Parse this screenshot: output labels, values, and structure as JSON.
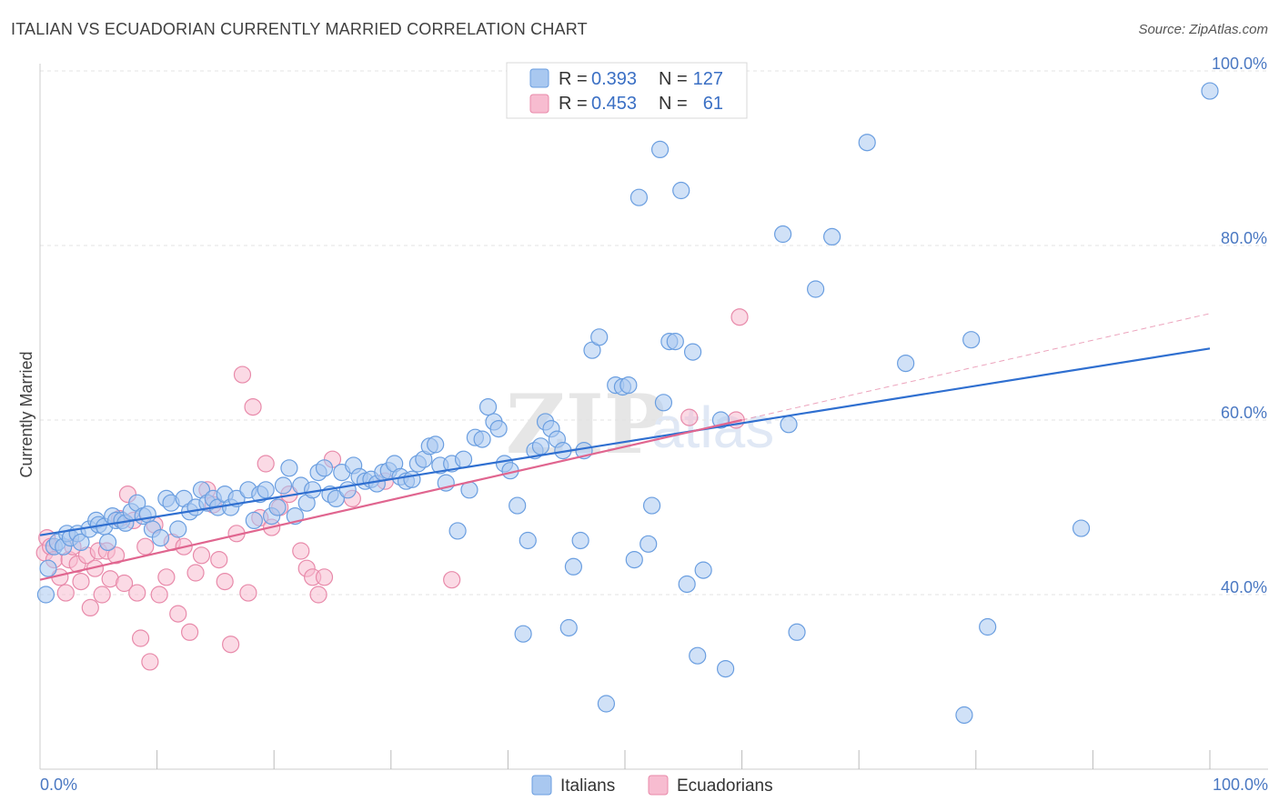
{
  "title": "ITALIAN VS ECUADORIAN CURRENTLY MARRIED CORRELATION CHART",
  "source": "Source: ZipAtlas.com",
  "watermark": {
    "zip": "ZIP",
    "atlas": "atlas"
  },
  "colors": {
    "italians_fill": "#a9c8f0",
    "italians_stroke": "#6a9ee0",
    "italians_line": "#2f6fd0",
    "ecuadorians_fill": "#f7bcd0",
    "ecuadorians_stroke": "#e88aaa",
    "ecuadorians_line": "#e0658f",
    "grid": "#e3e3e3",
    "tick_label": "#4a78c2"
  },
  "legend": {
    "r_label": "R =",
    "n_label": "N =",
    "italians": {
      "r": "0.393",
      "n": "127"
    },
    "ecuadorians": {
      "r": "0.453",
      "n": "61"
    }
  },
  "bottom_legend": [
    "Italians",
    "Ecuadorians"
  ],
  "chart_data": {
    "type": "scatter",
    "title": "ITALIAN VS ECUADORIAN CURRENTLY MARRIED CORRELATION CHART",
    "xlabel": "",
    "ylabel": "Currently Married",
    "xlim": [
      0,
      100
    ],
    "ylim": [
      20,
      100
    ],
    "x_tick_labels": [
      "0.0%",
      "100.0%"
    ],
    "y_tick_labels": [
      "40.0%",
      "60.0%",
      "80.0%",
      "100.0%"
    ],
    "y_ticks": [
      40,
      60,
      80,
      100
    ],
    "grid": "horizontal dashed",
    "legend_position": "top-center",
    "series": [
      {
        "name": "Italians",
        "r": 0.393,
        "n": 127,
        "trend": {
          "x": [
            0,
            100
          ],
          "y": [
            46.8,
            68.2
          ]
        },
        "points": [
          [
            0.5,
            40.0
          ],
          [
            0.7,
            43.0
          ],
          [
            1.2,
            45.5
          ],
          [
            1.5,
            46.0
          ],
          [
            2.0,
            45.5
          ],
          [
            2.3,
            47.0
          ],
          [
            2.6,
            46.5
          ],
          [
            3.2,
            47.0
          ],
          [
            3.5,
            46.0
          ],
          [
            4.2,
            47.5
          ],
          [
            4.8,
            48.5
          ],
          [
            5.0,
            48.0
          ],
          [
            5.5,
            47.8
          ],
          [
            5.8,
            46.0
          ],
          [
            6.2,
            49.0
          ],
          [
            6.5,
            48.5
          ],
          [
            7.0,
            48.5
          ],
          [
            7.3,
            48.2
          ],
          [
            7.8,
            49.5
          ],
          [
            8.3,
            50.5
          ],
          [
            8.8,
            49.0
          ],
          [
            9.2,
            49.2
          ],
          [
            9.6,
            47.5
          ],
          [
            10.3,
            46.5
          ],
          [
            10.8,
            51.0
          ],
          [
            11.2,
            50.5
          ],
          [
            11.8,
            47.5
          ],
          [
            12.3,
            51.0
          ],
          [
            12.8,
            49.5
          ],
          [
            13.3,
            50.0
          ],
          [
            13.8,
            52.0
          ],
          [
            14.3,
            50.5
          ],
          [
            14.8,
            51.0
          ],
          [
            15.2,
            50.0
          ],
          [
            15.8,
            51.5
          ],
          [
            16.3,
            50.0
          ],
          [
            16.8,
            51.0
          ],
          [
            17.8,
            52.0
          ],
          [
            18.3,
            48.5
          ],
          [
            18.8,
            51.5
          ],
          [
            19.3,
            52.0
          ],
          [
            19.8,
            49.0
          ],
          [
            20.3,
            50.0
          ],
          [
            20.8,
            52.5
          ],
          [
            21.3,
            54.5
          ],
          [
            21.8,
            49.0
          ],
          [
            22.3,
            52.5
          ],
          [
            22.8,
            50.5
          ],
          [
            23.3,
            52.0
          ],
          [
            23.8,
            54.0
          ],
          [
            24.3,
            54.5
          ],
          [
            24.8,
            51.5
          ],
          [
            25.3,
            51.0
          ],
          [
            25.8,
            54.0
          ],
          [
            26.3,
            52.0
          ],
          [
            26.8,
            54.8
          ],
          [
            27.3,
            53.5
          ],
          [
            27.8,
            53.0
          ],
          [
            28.3,
            53.2
          ],
          [
            28.8,
            52.7
          ],
          [
            29.3,
            54.0
          ],
          [
            29.8,
            54.2
          ],
          [
            30.3,
            55.0
          ],
          [
            30.8,
            53.5
          ],
          [
            31.3,
            53.0
          ],
          [
            31.8,
            53.2
          ],
          [
            32.3,
            55.0
          ],
          [
            32.8,
            55.5
          ],
          [
            33.3,
            57.0
          ],
          [
            33.8,
            57.2
          ],
          [
            34.2,
            54.8
          ],
          [
            34.7,
            52.8
          ],
          [
            35.2,
            55.0
          ],
          [
            35.7,
            47.3
          ],
          [
            36.2,
            55.5
          ],
          [
            36.7,
            52.0
          ],
          [
            37.2,
            58.0
          ],
          [
            37.8,
            57.8
          ],
          [
            38.3,
            61.5
          ],
          [
            38.8,
            59.8
          ],
          [
            39.2,
            59.0
          ],
          [
            39.7,
            55.0
          ],
          [
            40.2,
            54.2
          ],
          [
            40.8,
            50.2
          ],
          [
            41.7,
            46.2
          ],
          [
            41.3,
            35.5
          ],
          [
            42.3,
            56.5
          ],
          [
            42.8,
            57.0
          ],
          [
            43.2,
            59.8
          ],
          [
            43.7,
            59.0
          ],
          [
            44.2,
            57.8
          ],
          [
            44.7,
            56.5
          ],
          [
            45.2,
            36.2
          ],
          [
            45.6,
            43.2
          ],
          [
            46.2,
            46.2
          ],
          [
            46.5,
            56.5
          ],
          [
            47.2,
            68.0
          ],
          [
            47.8,
            69.5
          ],
          [
            48.4,
            27.5
          ],
          [
            49.2,
            64.0
          ],
          [
            49.8,
            63.8
          ],
          [
            50.3,
            64.0
          ],
          [
            50.8,
            44.0
          ],
          [
            51.2,
            85.5
          ],
          [
            52.0,
            45.8
          ],
          [
            52.3,
            50.2
          ],
          [
            53.0,
            91.0
          ],
          [
            53.3,
            62.0
          ],
          [
            53.8,
            69.0
          ],
          [
            54.3,
            69.0
          ],
          [
            54.8,
            86.3
          ],
          [
            55.3,
            41.2
          ],
          [
            55.8,
            67.8
          ],
          [
            56.2,
            33.0
          ],
          [
            56.7,
            42.8
          ],
          [
            58.2,
            60.0
          ],
          [
            58.6,
            31.5
          ],
          [
            63.5,
            81.3
          ],
          [
            64.0,
            59.5
          ],
          [
            64.7,
            35.7
          ],
          [
            66.3,
            75.0
          ],
          [
            67.7,
            81.0
          ],
          [
            70.7,
            91.8
          ],
          [
            74.0,
            66.5
          ],
          [
            79.0,
            26.2
          ],
          [
            79.6,
            69.2
          ],
          [
            81.0,
            36.3
          ],
          [
            89.0,
            47.6
          ],
          [
            100.0,
            97.7
          ]
        ]
      },
      {
        "name": "Ecuadorians",
        "r": 0.453,
        "n": 61,
        "trend": {
          "x": [
            0,
            100
          ],
          "y": [
            41.7,
            72.2
          ]
        },
        "points": [
          [
            0.4,
            44.8
          ],
          [
            0.6,
            46.5
          ],
          [
            0.9,
            45.5
          ],
          [
            1.2,
            44.0
          ],
          [
            1.7,
            42.0
          ],
          [
            2.2,
            40.2
          ],
          [
            2.5,
            44.0
          ],
          [
            2.8,
            45.5
          ],
          [
            3.2,
            43.5
          ],
          [
            3.5,
            41.5
          ],
          [
            4.0,
            44.5
          ],
          [
            4.3,
            38.5
          ],
          [
            4.7,
            43.0
          ],
          [
            5.0,
            45.0
          ],
          [
            5.3,
            40.0
          ],
          [
            5.7,
            45.0
          ],
          [
            6.0,
            41.8
          ],
          [
            6.5,
            44.5
          ],
          [
            6.8,
            48.7
          ],
          [
            7.2,
            41.3
          ],
          [
            7.5,
            51.5
          ],
          [
            8.0,
            48.5
          ],
          [
            8.3,
            40.2
          ],
          [
            8.6,
            35.0
          ],
          [
            9.0,
            45.5
          ],
          [
            9.4,
            32.3
          ],
          [
            9.8,
            48.0
          ],
          [
            10.2,
            40.0
          ],
          [
            10.8,
            42.0
          ],
          [
            11.3,
            46.0
          ],
          [
            11.8,
            37.8
          ],
          [
            12.3,
            45.5
          ],
          [
            12.8,
            35.7
          ],
          [
            13.3,
            42.5
          ],
          [
            13.8,
            44.5
          ],
          [
            14.3,
            52.0
          ],
          [
            14.8,
            50.3
          ],
          [
            15.3,
            44.0
          ],
          [
            15.8,
            41.5
          ],
          [
            16.3,
            34.3
          ],
          [
            16.8,
            47.0
          ],
          [
            17.3,
            65.2
          ],
          [
            17.8,
            40.2
          ],
          [
            18.2,
            61.5
          ],
          [
            18.8,
            48.8
          ],
          [
            19.3,
            55.0
          ],
          [
            19.8,
            47.7
          ],
          [
            20.5,
            50.0
          ],
          [
            21.3,
            51.5
          ],
          [
            22.3,
            45.0
          ],
          [
            22.8,
            43.0
          ],
          [
            23.3,
            42.0
          ],
          [
            23.8,
            40.0
          ],
          [
            24.3,
            42.0
          ],
          [
            25.0,
            55.5
          ],
          [
            26.7,
            51.0
          ],
          [
            29.5,
            53.0
          ],
          [
            35.2,
            41.7
          ],
          [
            55.5,
            60.3
          ],
          [
            59.5,
            60.0
          ],
          [
            59.8,
            71.8
          ]
        ]
      }
    ]
  }
}
